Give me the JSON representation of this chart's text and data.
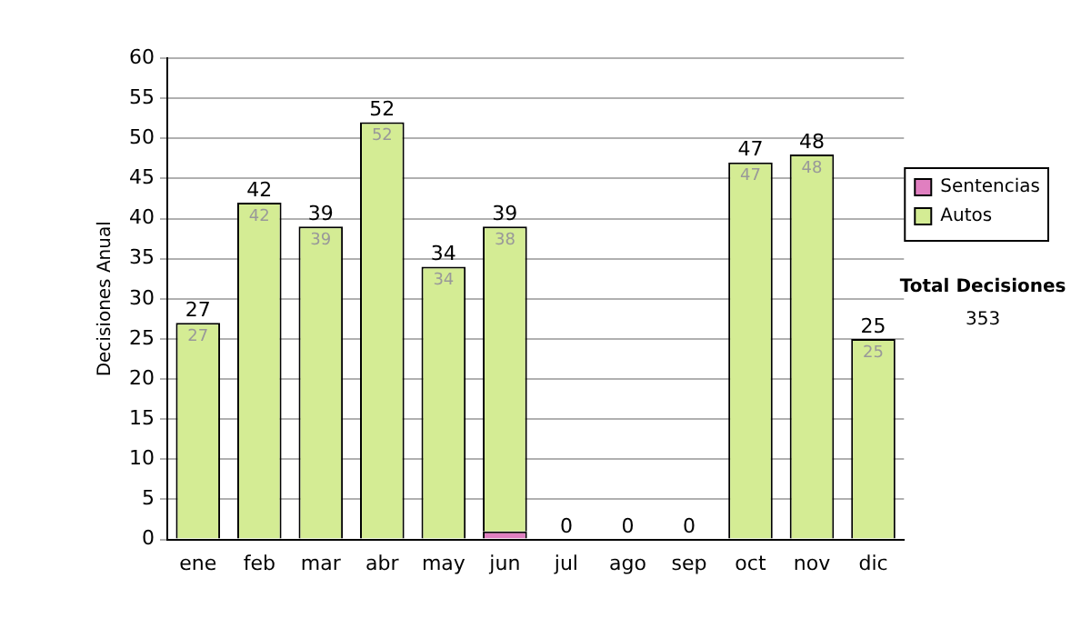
{
  "chart_data": {
    "type": "bar",
    "stacked": true,
    "ylabel": "Decisiones Anual",
    "categories": [
      "ene",
      "feb",
      "mar",
      "abr",
      "may",
      "jun",
      "jul",
      "ago",
      "sep",
      "oct",
      "nov",
      "dic"
    ],
    "series": [
      {
        "name": "Sentencias",
        "color": "#e07fc0",
        "values": [
          0,
          0,
          0,
          0,
          0,
          1,
          0,
          0,
          0,
          0,
          0,
          0
        ]
      },
      {
        "name": "Autos",
        "color": "#d4ec94",
        "values": [
          27,
          42,
          39,
          52,
          34,
          38,
          0,
          0,
          0,
          47,
          48,
          25
        ],
        "value_labels": [
          "27",
          "42",
          "39",
          "52",
          "34",
          "38",
          null,
          null,
          null,
          "47",
          "48",
          "25"
        ]
      }
    ],
    "totals": [
      "27",
      "42",
      "39",
      "52",
      "34",
      "39",
      "0",
      "0",
      "0",
      "47",
      "48",
      "25"
    ],
    "ylim": [
      0,
      60
    ],
    "yticks": [
      0,
      5,
      10,
      15,
      20,
      25,
      30,
      35,
      40,
      45,
      50,
      55,
      60
    ],
    "grid": "y",
    "legend": "right",
    "annotations": [
      "Total Decisiones",
      "353"
    ]
  }
}
